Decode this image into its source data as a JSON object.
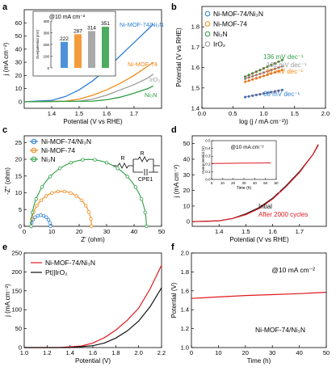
{
  "figure": {
    "panels": [
      {
        "id": "a",
        "letter": "a"
      },
      {
        "id": "b",
        "letter": "b"
      },
      {
        "id": "c",
        "letter": "c"
      },
      {
        "id": "d",
        "letter": "d"
      },
      {
        "id": "e",
        "letter": "e"
      },
      {
        "id": "f",
        "letter": "f"
      }
    ]
  },
  "chart_data": [
    {
      "id": "a",
      "type": "line",
      "xlabel": "Potential (V vs RHE)",
      "ylabel": "j (mA cm⁻²)",
      "xlim": [
        1.3,
        1.8
      ],
      "ylim": [
        -5,
        70
      ],
      "xticks": [
        1.4,
        1.5,
        1.6,
        1.7
      ],
      "yticks": [
        0,
        10,
        20,
        30,
        40,
        50,
        60
      ],
      "series": [
        {
          "name": "Ni-MOF-74/Ni₃N",
          "color": "#2e7fd1",
          "x": [
            1.3,
            1.4,
            1.45,
            1.5,
            1.55,
            1.6,
            1.65,
            1.7,
            1.75,
            1.77
          ],
          "y": [
            0,
            1,
            4,
            9,
            16,
            25,
            35,
            45,
            55,
            59
          ]
        },
        {
          "name": "Ni-MOF-74",
          "color": "#f28a1a",
          "x": [
            1.3,
            1.45,
            1.5,
            1.55,
            1.6,
            1.65,
            1.7,
            1.75,
            1.77
          ],
          "y": [
            0,
            0.5,
            2,
            5,
            9,
            14,
            20,
            27,
            30
          ]
        },
        {
          "name": "IrO₂",
          "color": "#9a9a9a",
          "x": [
            1.3,
            1.5,
            1.55,
            1.6,
            1.65,
            1.7,
            1.75,
            1.77
          ],
          "y": [
            0,
            0.5,
            2,
            5,
            9,
            13,
            18,
            21
          ]
        },
        {
          "name": "Ni₃N",
          "color": "#2e9e44",
          "x": [
            1.3,
            1.55,
            1.6,
            1.65,
            1.7,
            1.75,
            1.77
          ],
          "y": [
            0,
            0.5,
            1.5,
            3.5,
            6.5,
            10,
            12
          ]
        }
      ],
      "inset": {
        "title": "@10 mA cm⁻²",
        "ylabel": "Overpotential (mV)",
        "values": [
          222,
          287,
          314,
          351
        ],
        "colors": [
          "#2e7fd1",
          "#f28a1a",
          "#9a9a9a",
          "#2e9e44"
        ],
        "ylim": [
          0,
          400
        ],
        "yticks": [
          0,
          100,
          200,
          300,
          400
        ]
      }
    },
    {
      "id": "b",
      "type": "scatter",
      "xlabel": "log (j / mA cm⁻²))",
      "ylabel": "Potential (V vs RHE)",
      "xlim": [
        0,
        2
      ],
      "ylim": [
        1.4,
        1.9
      ],
      "xticks": [
        0.0,
        0.5,
        1.0,
        1.5,
        2.0
      ],
      "yticks": [
        1.4,
        1.5,
        1.6,
        1.7,
        1.8
      ],
      "series": [
        {
          "name": "Ni-MOF-74/Ni₃N",
          "color": "#2e7fd1",
          "slope": "58 mV dec⁻¹",
          "x": [
            0.7,
            1.3
          ],
          "y": [
            1.455,
            1.49
          ]
        },
        {
          "name": "Ni-MOF-74",
          "color": "#f28a1a",
          "slope": "97 mV dec⁻¹",
          "x": [
            0.7,
            1.3
          ],
          "y": [
            1.53,
            1.588
          ]
        },
        {
          "name": "Ni₃N",
          "color": "#2e9e44",
          "slope": "136 mV dec⁻¹",
          "x": [
            0.7,
            1.3
          ],
          "y": [
            1.555,
            1.637
          ]
        },
        {
          "name": "IrO₂",
          "color": "#9a9a9a",
          "slope": "102 mV dec⁻¹",
          "x": [
            0.7,
            1.3
          ],
          "y": [
            1.545,
            1.606
          ]
        }
      ]
    },
    {
      "id": "c",
      "type": "scatter",
      "xlabel": "Z' (ohm)",
      "ylabel": "-Z'' (ohm)",
      "xlim": [
        0,
        50
      ],
      "ylim": [
        0,
        27
      ],
      "xticks": [
        0,
        10,
        20,
        30,
        40,
        50
      ],
      "yticks": [
        0,
        5,
        10,
        15,
        20,
        25
      ],
      "series": [
        {
          "name": "Ni-MOF-74/Ni₃N",
          "color": "#2e7fd1",
          "x0": 2.5,
          "x1": 9.5
        },
        {
          "name": "Ni-MOF-74",
          "color": "#f28a1a",
          "x0": 2.5,
          "x1": 24.5
        },
        {
          "name": "Ni₃N",
          "color": "#2e9e44",
          "x0": 2.5,
          "x1": 44.5
        }
      ],
      "circuit": {
        "labels": [
          "R",
          "R",
          "CPE1"
        ]
      }
    },
    {
      "id": "d",
      "type": "line",
      "xlabel": "Potential (V vs RHE)",
      "ylabel": "j (mA cm⁻²)",
      "xlim": [
        1.3,
        1.8
      ],
      "ylim": [
        -3,
        55
      ],
      "xticks": [
        1.4,
        1.5,
        1.6,
        1.7
      ],
      "yticks": [
        0,
        10,
        20,
        30,
        40,
        50
      ],
      "series": [
        {
          "name": "Intial",
          "color": "#111111",
          "x": [
            1.3,
            1.4,
            1.45,
            1.5,
            1.55,
            1.6,
            1.65,
            1.7,
            1.75,
            1.77
          ],
          "y": [
            0,
            0.5,
            2,
            5,
            9,
            15,
            23,
            32,
            43,
            49
          ]
        },
        {
          "name": "After 2000 cycles",
          "color": "#e0191e",
          "x": [
            1.3,
            1.4,
            1.45,
            1.5,
            1.55,
            1.6,
            1.65,
            1.7,
            1.75,
            1.77
          ],
          "y": [
            0,
            0.5,
            2,
            4.5,
            8.5,
            14.5,
            22.5,
            31.5,
            43,
            49.5
          ]
        }
      ],
      "inset": {
        "title": "@10 mA cm⁻²",
        "xlabel": "Time (h)",
        "ylabel": "Overpotential (V)",
        "xlim": [
          0,
          60
        ],
        "ylim": [
          0,
          0.5
        ],
        "xticks": [
          0,
          10,
          20,
          30,
          40,
          50,
          60
        ],
        "yticks": [
          0.0,
          0.1,
          0.2,
          0.3,
          0.4,
          0.5
        ],
        "x": [
          0,
          10,
          20,
          30,
          40,
          50,
          55
        ],
        "y": [
          0.205,
          0.207,
          0.208,
          0.21,
          0.211,
          0.212,
          0.212
        ],
        "color": "#e0191e"
      }
    },
    {
      "id": "e",
      "type": "line",
      "xlabel": "Potential (V)",
      "ylabel": "j (mA cm⁻²)",
      "xlim": [
        1.0,
        2.2
      ],
      "ylim": [
        0,
        250
      ],
      "xticks": [
        1.0,
        1.2,
        1.4,
        1.6,
        1.8,
        2.0,
        2.2
      ],
      "yticks": [
        0,
        50,
        100,
        150,
        200,
        250
      ],
      "series": [
        {
          "name": "Ni-MOF-74/Ni₃N",
          "color": "#e0191e",
          "x": [
            1.0,
            1.3,
            1.5,
            1.6,
            1.7,
            1.8,
            1.9,
            2.0,
            2.1,
            2.2
          ],
          "y": [
            0,
            0,
            4,
            12,
            26,
            46,
            72,
            104,
            155,
            218
          ]
        },
        {
          "name": "Pt||IrO₂",
          "color": "#111111",
          "x": [
            1.0,
            1.4,
            1.6,
            1.7,
            1.8,
            1.9,
            2.0,
            2.1,
            2.2
          ],
          "y": [
            0,
            0,
            5,
            12,
            25,
            44,
            70,
            108,
            158
          ]
        }
      ]
    },
    {
      "id": "f",
      "type": "line",
      "xlabel": "Time (h)",
      "ylabel": "Potential (V)",
      "xlim": [
        0,
        50
      ],
      "ylim": [
        1.0,
        2.0
      ],
      "xticks": [
        0,
        10,
        20,
        30,
        40,
        50
      ],
      "yticks": [
        1.0,
        1.2,
        1.4,
        1.6,
        1.8,
        2.0
      ],
      "annotations": [
        "@10 mA cm⁻²",
        "Ni-MOF-74/Ni₃N"
      ],
      "series": [
        {
          "name": "Ni-MOF-74/Ni₃N",
          "color": "#e0191e",
          "x": [
            0,
            10,
            20,
            30,
            40,
            50
          ],
          "y": [
            1.52,
            1.535,
            1.55,
            1.56,
            1.57,
            1.585
          ]
        }
      ]
    }
  ]
}
